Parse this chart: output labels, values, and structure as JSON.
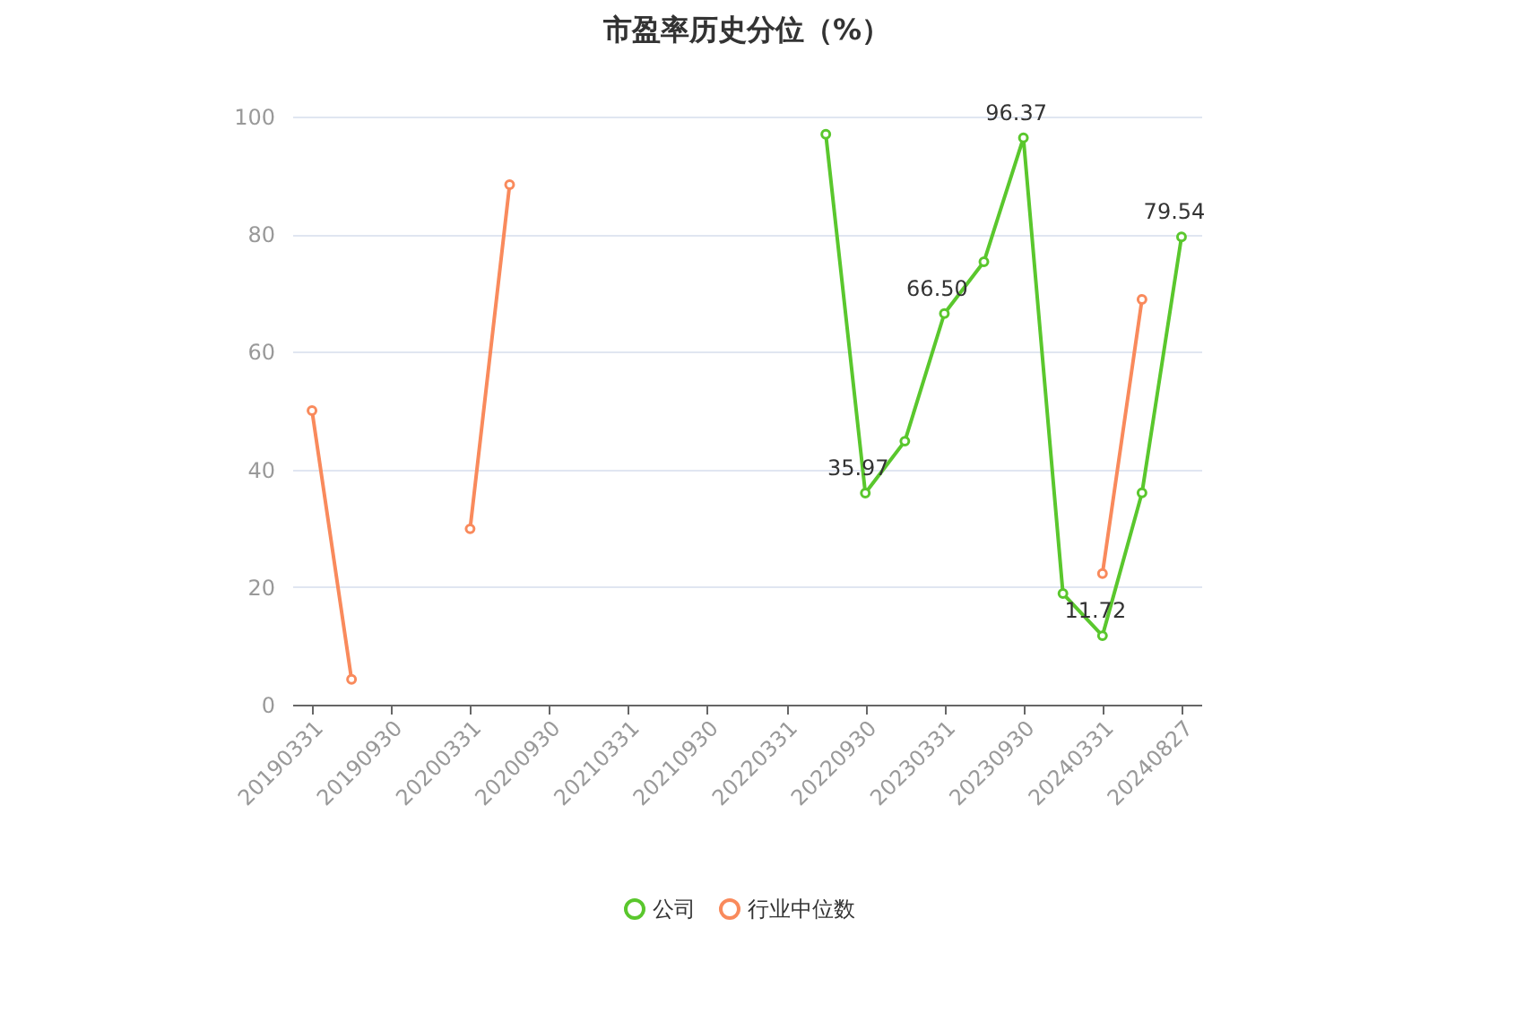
{
  "chart_data": {
    "type": "line",
    "title": "市盈率历史分位（%）",
    "categories": [
      "20190331",
      null,
      "20190930",
      null,
      "20200331",
      null,
      "20200930",
      null,
      "20210331",
      null,
      "20210930",
      null,
      "20220331",
      null,
      "20220930",
      null,
      "20230331",
      null,
      "20230930",
      null,
      "20240331",
      null,
      "20240827"
    ],
    "series": [
      {
        "name": "公司",
        "color": "#5ac72d",
        "values": [
          null,
          null,
          null,
          null,
          null,
          null,
          null,
          null,
          null,
          null,
          null,
          null,
          null,
          97,
          35.97,
          44.8,
          66.5,
          75.3,
          96.37,
          18.9,
          11.72,
          36,
          79.54
        ],
        "value_labels": [
          null,
          null,
          null,
          null,
          null,
          null,
          null,
          null,
          null,
          null,
          null,
          null,
          null,
          null,
          "35.97",
          null,
          "66.50",
          null,
          "96.37",
          null,
          "11.72",
          null,
          "79.54"
        ]
      },
      {
        "name": "行业中位数",
        "color": "#f98a5c",
        "values": [
          50,
          4.3,
          null,
          null,
          29.9,
          88.4,
          null,
          null,
          null,
          null,
          null,
          null,
          null,
          null,
          null,
          null,
          null,
          null,
          null,
          null,
          22.3,
          68.9,
          null
        ]
      }
    ],
    "ylim": [
      0,
      100
    ],
    "yticks": [
      0,
      20,
      40,
      60,
      80,
      100
    ],
    "grid": "y",
    "legend": "bottom",
    "marker": "circle"
  }
}
